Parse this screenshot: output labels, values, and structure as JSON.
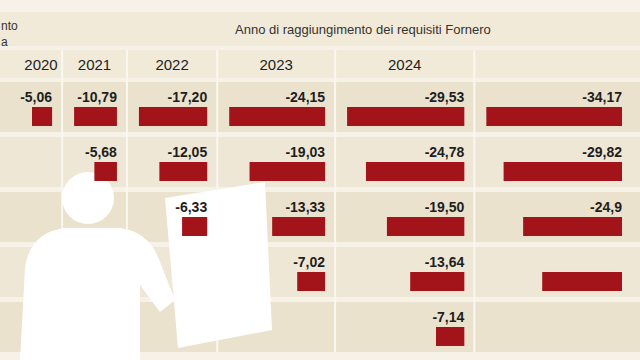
{
  "chart_data": {
    "type": "bar",
    "orientation": "horizontal",
    "title": "Anno di raggiungimento dei requisiti Fornero",
    "annotations": [
      "nto",
      "a"
    ],
    "categories": [
      "2020",
      "2021",
      "2022",
      "2023",
      "2024",
      null
    ],
    "color": "#a3131a",
    "data_labels": true,
    "tick_labels": "x",
    "series": [
      {
        "values": [
          -5.06,
          -10.79,
          -17.2,
          -24.15,
          -29.53,
          -34.17
        ],
        "value_labels": [
          "-5,06",
          "-10,79",
          "-17,20",
          "-24,15",
          "-29,53",
          "-34,17"
        ]
      },
      {
        "values": [
          null,
          -5.68,
          -12.05,
          -19.03,
          -24.78,
          -29.82
        ],
        "value_labels": [
          null,
          "-5,68",
          "-12,05",
          "-19,03",
          "-24,78",
          "-29,82"
        ]
      },
      {
        "values": [
          null,
          null,
          -6.33,
          -13.33,
          -19.5,
          -24.9
        ],
        "value_labels": [
          null,
          null,
          "-6,33",
          "-13,33",
          "-19,50",
          "-24,9"
        ]
      },
      {
        "values": [
          null,
          null,
          null,
          -7.02,
          -13.64,
          -20.1
        ],
        "value_labels": [
          null,
          null,
          null,
          "-7,02",
          "-13,64",
          null
        ]
      },
      {
        "values": [
          null,
          null,
          null,
          null,
          -7.14,
          null
        ],
        "value_labels": [
          null,
          null,
          null,
          null,
          "-7,14",
          null
        ]
      }
    ]
  }
}
